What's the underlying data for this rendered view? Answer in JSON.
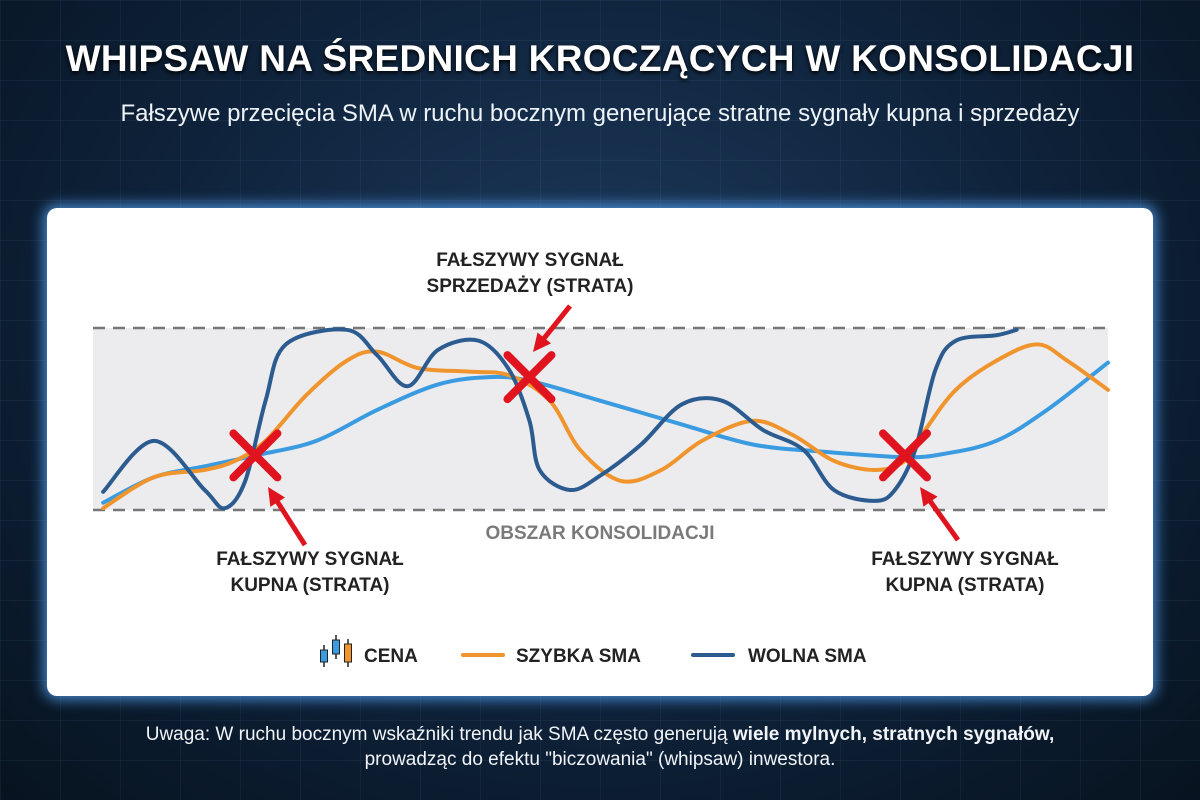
{
  "title": "WHIPSAW NA ŚREDNICH KROCZĄCYCH W KONSOLIDACJI",
  "subtitle": "Fałszywe przecięcia SMA w ruchu bocznym generujące stratne sygnały kupna i sprzedaży",
  "note": {
    "prefix": "Uwaga: W ruchu bocznym wskaźniki trendu jak SMA często generują ",
    "bold": "wiele mylnych, stratnych sygnałów,",
    "line2": "prowadząc do efektu \"biczowania\" (whipsaw) inwestora."
  },
  "chart_data": {
    "type": "line",
    "title": "",
    "xlabel": "",
    "ylabel": "",
    "xlim": [
      0,
      100
    ],
    "ylim": [
      0,
      100
    ],
    "grid": false,
    "legend_placement": "bottom",
    "band": {
      "label": "OBSZAR KONSOLIDACJI",
      "range": [
        0,
        100
      ]
    },
    "legend": [
      {
        "label": "CENA",
        "icon": "candlestick-icon"
      },
      {
        "label": "SZYBKA SMA",
        "color": "#f0952e"
      },
      {
        "label": "WOLNA SMA",
        "color": "#2c5b8f"
      }
    ],
    "series": [
      {
        "name": "WOLNA SMA",
        "color": "#2c5b8f",
        "x": [
          1,
          6,
          11,
          13,
          15,
          17,
          19,
          25,
          28,
          31,
          34,
          38,
          41,
          43,
          44,
          47,
          50,
          54,
          58,
          62,
          66,
          70,
          73,
          77,
          79,
          81,
          83,
          85,
          89,
          91
        ],
        "y": [
          10,
          38,
          11,
          1,
          16,
          60,
          91,
          99,
          85,
          68,
          88,
          93,
          77,
          49,
          22,
          11,
          19,
          36,
          58,
          60,
          44,
          33,
          11,
          5,
          11,
          33,
          77,
          93,
          96,
          99
        ]
      },
      {
        "name": "SZYBKA SMA",
        "color": "#f0952e",
        "x": [
          1,
          6,
          11,
          14,
          17,
          21,
          25,
          28,
          32,
          37,
          41,
          45,
          48,
          52,
          56,
          60,
          65,
          69,
          73,
          77,
          80,
          82,
          85,
          89,
          93,
          96,
          100
        ],
        "y": [
          1,
          18,
          22,
          27,
          38,
          63,
          82,
          87,
          78,
          76,
          74,
          60,
          33,
          16,
          22,
          38,
          49,
          41,
          27,
          22,
          27,
          44,
          66,
          82,
          91,
          82,
          66
        ]
      },
      {
        "name": "",
        "color": "#3a9be0",
        "x": [
          1,
          6,
          11,
          16,
          22,
          28,
          34,
          39,
          43,
          50,
          58,
          65,
          72,
          80,
          84,
          89,
          94,
          100
        ],
        "y": [
          4,
          18,
          24,
          30,
          38,
          55,
          69,
          73,
          71,
          60,
          47,
          36,
          32,
          29,
          31,
          38,
          55,
          81
        ]
      }
    ],
    "annotations": [
      {
        "text": [
          "FAŁSZYWY SYGNAŁ",
          "KUPNA (STRATA)"
        ],
        "x": 16,
        "y": 30
      },
      {
        "text": [
          "FAŁSZYWY SYGNAŁ",
          "SPRZEDAŻY (STRATA)"
        ],
        "x": 43,
        "y": 73
      },
      {
        "text": [
          "FAŁSZYWY SYGNAŁ",
          "KUPNA (STRATA)"
        ],
        "x": 80,
        "y": 30
      }
    ]
  }
}
